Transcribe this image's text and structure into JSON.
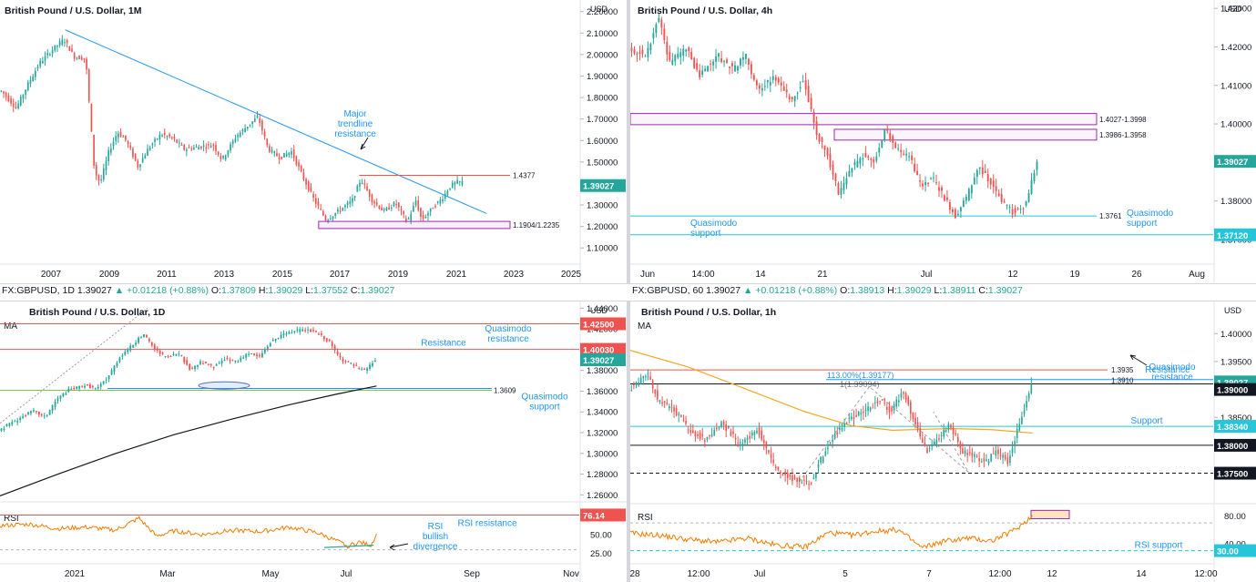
{
  "colors": {
    "up": "#26a69a",
    "down": "#ef5350",
    "blue": "#2196f3",
    "red_line": "#ef5350",
    "purple": "#9c27b0",
    "orange": "#f57c00",
    "black": "#131722",
    "axis_text": "#131722",
    "annotation": "#2196f3",
    "last_price_bg": "#26a69a"
  },
  "infobar_daily": {
    "symbol": "FX:GBPUSD, 1D",
    "last": "1.39027",
    "change": "▲ +0.01218 (+0.88%)",
    "o_label": "O:",
    "o": "1.37809",
    "h_label": "H:",
    "h": "1.39029",
    "l_label": "L:",
    "l": "1.37552",
    "c_label": "C:",
    "c": "1.39027"
  },
  "infobar_hourly": {
    "symbol": "FX:GBPUSD, 60",
    "last": "1.39027",
    "change": "▲ +0.01218 (+0.88%)",
    "o_label": "O:",
    "o": "1.38913",
    "h_label": "H:",
    "h": "1.39029",
    "l_label": "L:",
    "l": "1.38911",
    "c_label": "C:",
    "c": "1.39027"
  },
  "chart_data": [
    {
      "id": "monthly",
      "type": "candlestick",
      "title": "British Pound / U.S. Dollar, 1M",
      "currency": "USD",
      "ylim": [
        1.05,
        2.22
      ],
      "y_ticks": [
        "2.20000",
        "2.10000",
        "2.00000",
        "1.90000",
        "1.80000",
        "1.70000",
        "1.60000",
        "1.50000",
        "1.40000",
        "1.30000",
        "1.20000",
        "1.10000"
      ],
      "x_ticks": [
        "2007",
        "2009",
        "2011",
        "2013",
        "2015",
        "2017",
        "2019",
        "2021",
        "2023",
        "2025"
      ],
      "x_range": [
        2005.6,
        2025.6
      ],
      "last_price": "1.39027",
      "close_path": [
        [
          2005.7,
          1.83
        ],
        [
          2006.2,
          1.75
        ],
        [
          2006.6,
          1.86
        ],
        [
          2007.0,
          1.96
        ],
        [
          2007.5,
          2.03
        ],
        [
          2007.85,
          2.07
        ],
        [
          2008.2,
          1.99
        ],
        [
          2008.6,
          1.98
        ],
        [
          2008.9,
          1.46
        ],
        [
          2009.1,
          1.4
        ],
        [
          2009.4,
          1.55
        ],
        [
          2009.7,
          1.64
        ],
        [
          2010.0,
          1.6
        ],
        [
          2010.4,
          1.48
        ],
        [
          2010.8,
          1.57
        ],
        [
          2011.2,
          1.63
        ],
        [
          2011.6,
          1.61
        ],
        [
          2012.0,
          1.56
        ],
        [
          2012.5,
          1.57
        ],
        [
          2013.0,
          1.58
        ],
        [
          2013.3,
          1.51
        ],
        [
          2013.8,
          1.62
        ],
        [
          2014.2,
          1.67
        ],
        [
          2014.55,
          1.71
        ],
        [
          2014.9,
          1.56
        ],
        [
          2015.3,
          1.52
        ],
        [
          2015.7,
          1.55
        ],
        [
          2016.1,
          1.43
        ],
        [
          2016.5,
          1.32
        ],
        [
          2016.9,
          1.23
        ],
        [
          2017.3,
          1.27
        ],
        [
          2017.8,
          1.32
        ],
        [
          2018.1,
          1.42
        ],
        [
          2018.5,
          1.32
        ],
        [
          2018.9,
          1.27
        ],
        [
          2019.3,
          1.31
        ],
        [
          2019.7,
          1.22
        ],
        [
          2020.0,
          1.32
        ],
        [
          2020.2,
          1.23
        ],
        [
          2020.6,
          1.29
        ],
        [
          2020.9,
          1.33
        ],
        [
          2021.2,
          1.39
        ],
        [
          2021.5,
          1.41
        ],
        [
          2021.6,
          1.39
        ]
      ],
      "trendline": {
        "from": [
          2007.85,
          2.115
        ],
        "to": [
          2022.4,
          1.26
        ],
        "label": [
          "Major",
          "trendline",
          "resistance"
        ]
      },
      "resistance_line": {
        "value": 1.4377,
        "from_x": 2018.0,
        "label": "1.4377"
      },
      "zone": {
        "high": 1.2235,
        "low": 1.1904,
        "from_x": 2016.6,
        "label": "1.1904/1.2235"
      }
    },
    {
      "id": "four_hour",
      "type": "candlestick",
      "title": "British Pound / U.S. Dollar, 4h",
      "currency": "USD",
      "ylim": [
        1.365,
        1.431
      ],
      "y_ticks": [
        "1.43000",
        "1.42000",
        "1.41000",
        "1.40000",
        "1.39000",
        "1.38000",
        "1.37000"
      ],
      "x_ticks": [
        "Jun",
        "14:00",
        "14",
        "21",
        "Jul",
        "12",
        "19",
        "26",
        "Aug"
      ],
      "x_range": [
        0,
        100
      ],
      "last_price": "1.39027",
      "close_path": [
        [
          0,
          1.419
        ],
        [
          3,
          1.418
        ],
        [
          5,
          1.428
        ],
        [
          7,
          1.416
        ],
        [
          10,
          1.42
        ],
        [
          12,
          1.412
        ],
        [
          15,
          1.418
        ],
        [
          18,
          1.414
        ],
        [
          20,
          1.418
        ],
        [
          22,
          1.409
        ],
        [
          25,
          1.412
        ],
        [
          28,
          1.406
        ],
        [
          30,
          1.412
        ],
        [
          32,
          1.398
        ],
        [
          34,
          1.392
        ],
        [
          36,
          1.382
        ],
        [
          38,
          1.388
        ],
        [
          40,
          1.392
        ],
        [
          42,
          1.39
        ],
        [
          44,
          1.399
        ],
        [
          46,
          1.393
        ],
        [
          48,
          1.392
        ],
        [
          50,
          1.384
        ],
        [
          52,
          1.386
        ],
        [
          54,
          1.381
        ],
        [
          56,
          1.376
        ],
        [
          58,
          1.381
        ],
        [
          60,
          1.389
        ],
        [
          62,
          1.385
        ],
        [
          64,
          1.38
        ],
        [
          66,
          1.377
        ],
        [
          68,
          1.379
        ],
        [
          70,
          1.39
        ]
      ],
      "zones": [
        {
          "high": 1.4027,
          "low": 1.3998,
          "from_x": 0,
          "label": "1.4027-1.3998"
        },
        {
          "high": 1.3986,
          "low": 1.3958,
          "from_x": 35,
          "label": "1.3986-1.3958"
        }
      ],
      "lines": [
        {
          "value": 1.3761,
          "label": "1.3761",
          "annotation": [
            "Quasimodo",
            "support"
          ],
          "left_annotation": [
            "Quasimodo",
            "support"
          ]
        },
        {
          "value": 1.3712,
          "label": "1.37120"
        }
      ]
    },
    {
      "id": "daily",
      "type": "candlestick",
      "title": "British Pound / U.S. Dollar, 1D",
      "currency": "USD",
      "ylim": [
        1.255,
        1.443
      ],
      "y_ticks": [
        "1.44000",
        "1.42000",
        "1.40000",
        "1.38000",
        "1.36000",
        "1.34000",
        "1.32000",
        "1.30000",
        "1.28000",
        "1.26000"
      ],
      "x_ticks": [
        "2021",
        "Mar",
        "May",
        "Jul",
        "Sep",
        "Nov"
      ],
      "x_range": [
        0,
        100
      ],
      "last_price": "1.39027",
      "indicator": "MA",
      "close_path": [
        [
          0,
          1.322
        ],
        [
          3,
          1.332
        ],
        [
          6,
          1.341
        ],
        [
          8,
          1.335
        ],
        [
          10,
          1.352
        ],
        [
          12,
          1.361
        ],
        [
          15,
          1.366
        ],
        [
          17,
          1.362
        ],
        [
          19,
          1.375
        ],
        [
          21,
          1.394
        ],
        [
          23,
          1.404
        ],
        [
          25,
          1.415
        ],
        [
          27,
          1.4
        ],
        [
          29,
          1.392
        ],
        [
          31,
          1.397
        ],
        [
          33,
          1.381
        ],
        [
          35,
          1.388
        ],
        [
          37,
          1.383
        ],
        [
          39,
          1.391
        ],
        [
          41,
          1.388
        ],
        [
          43,
          1.397
        ],
        [
          45,
          1.393
        ],
        [
          47,
          1.408
        ],
        [
          49,
          1.414
        ],
        [
          51,
          1.418
        ],
        [
          53,
          1.419
        ],
        [
          55,
          1.416
        ],
        [
          57,
          1.408
        ],
        [
          59,
          1.391
        ],
        [
          61,
          1.386
        ],
        [
          63,
          1.379
        ],
        [
          65,
          1.39
        ]
      ],
      "ma": [
        [
          0,
          1.259
        ],
        [
          10,
          1.28
        ],
        [
          20,
          1.3
        ],
        [
          30,
          1.318
        ],
        [
          40,
          1.333
        ],
        [
          50,
          1.347
        ],
        [
          58,
          1.357
        ],
        [
          65,
          1.365
        ]
      ],
      "lines": [
        {
          "value": 1.425,
          "label": "1.42500",
          "annotation": [
            "Quasimodo",
            "resistance"
          ]
        },
        {
          "value": 1.4003,
          "label": "1.40030",
          "annotation": [
            "Resistance"
          ]
        },
        {
          "value": 1.3609,
          "label": "1.3609",
          "annotation": [
            "Quasimodo",
            "support"
          ]
        }
      ],
      "rsi": {
        "label": "RSI",
        "ylim": [
          15,
          90
        ],
        "ticks": [
          "50.00",
          "25.00"
        ],
        "resistance": {
          "value": 76.14,
          "label": "76.14",
          "annotation": "RSI resistance"
        },
        "divergence_label": [
          "RSI",
          "bullish",
          "divergence"
        ],
        "values": [
          [
            0,
            62
          ],
          [
            5,
            64
          ],
          [
            10,
            58
          ],
          [
            15,
            60
          ],
          [
            20,
            56
          ],
          [
            24,
            72
          ],
          [
            27,
            48
          ],
          [
            30,
            55
          ],
          [
            35,
            50
          ],
          [
            40,
            56
          ],
          [
            45,
            54
          ],
          [
            50,
            60
          ],
          [
            55,
            52
          ],
          [
            58,
            42
          ],
          [
            60,
            35
          ],
          [
            62,
            40
          ],
          [
            64,
            36
          ],
          [
            65,
            50
          ]
        ]
      }
    },
    {
      "id": "hourly",
      "type": "candlestick",
      "title": "British Pound / U.S. Dollar, 1h",
      "currency": "USD",
      "ylim": [
        1.3715,
        1.4025
      ],
      "y_ticks": [
        "1.40000",
        "1.39500",
        "1.39000",
        "1.38500",
        "1.38000",
        "1.37500"
      ],
      "x_ticks": [
        "28",
        "12:00",
        "Jul",
        "5",
        "7",
        "12:00",
        "12",
        "14",
        "12:00"
      ],
      "x_range": [
        0,
        100
      ],
      "last_price": "1.39027",
      "indicator": "MA",
      "close_path": [
        [
          0,
          1.39
        ],
        [
          3,
          1.393
        ],
        [
          5,
          1.388
        ],
        [
          8,
          1.386
        ],
        [
          10,
          1.383
        ],
        [
          13,
          1.381
        ],
        [
          16,
          1.384
        ],
        [
          19,
          1.38
        ],
        [
          22,
          1.383
        ],
        [
          25,
          1.376
        ],
        [
          28,
          1.374
        ],
        [
          31,
          1.373
        ],
        [
          34,
          1.38
        ],
        [
          37,
          1.384
        ],
        [
          40,
          1.386
        ],
        [
          43,
          1.388
        ],
        [
          45,
          1.386
        ],
        [
          47,
          1.39
        ],
        [
          49,
          1.384
        ],
        [
          51,
          1.379
        ],
        [
          53,
          1.381
        ],
        [
          55,
          1.384
        ],
        [
          57,
          1.379
        ],
        [
          59,
          1.378
        ],
        [
          61,
          1.377
        ],
        [
          63,
          1.379
        ],
        [
          65,
          1.377
        ],
        [
          67,
          1.384
        ],
        [
          69,
          1.391
        ]
      ],
      "ma": [
        [
          0,
          1.397
        ],
        [
          10,
          1.394
        ],
        [
          20,
          1.39
        ],
        [
          30,
          1.386
        ],
        [
          38,
          1.3835
        ],
        [
          45,
          1.3827
        ],
        [
          55,
          1.383
        ],
        [
          62,
          1.3828
        ],
        [
          69,
          1.3822
        ]
      ],
      "lines": [
        {
          "value": 1.3935,
          "label": "1.3935",
          "annotation": "Resistance"
        },
        {
          "value": 1.39177,
          "label": "113.00%(1.39177)"
        },
        {
          "value": 1.391,
          "label": "1.3910",
          "annotation": [
            "Quasimodo",
            "resistance"
          ]
        },
        {
          "value": 1.3834,
          "label": "1.38340",
          "annotation": "Support"
        },
        {
          "value": 1.38,
          "label": "1.38000"
        },
        {
          "value": 1.375,
          "label": "1.37500"
        }
      ],
      "fib_label": "1(1.39094)",
      "rsi": {
        "label": "RSI",
        "ylim": [
          15,
          95
        ],
        "ticks": [
          "80.00",
          "40.00"
        ],
        "support": {
          "value": 30,
          "label": "30.00",
          "annotation": "RSI support"
        },
        "values": [
          [
            0,
            55
          ],
          [
            5,
            52
          ],
          [
            10,
            46
          ],
          [
            15,
            42
          ],
          [
            20,
            48
          ],
          [
            25,
            38
          ],
          [
            30,
            35
          ],
          [
            34,
            56
          ],
          [
            38,
            52
          ],
          [
            42,
            58
          ],
          [
            46,
            60
          ],
          [
            50,
            34
          ],
          [
            54,
            44
          ],
          [
            58,
            48
          ],
          [
            62,
            44
          ],
          [
            66,
            60
          ],
          [
            69,
            80
          ]
        ]
      }
    }
  ]
}
